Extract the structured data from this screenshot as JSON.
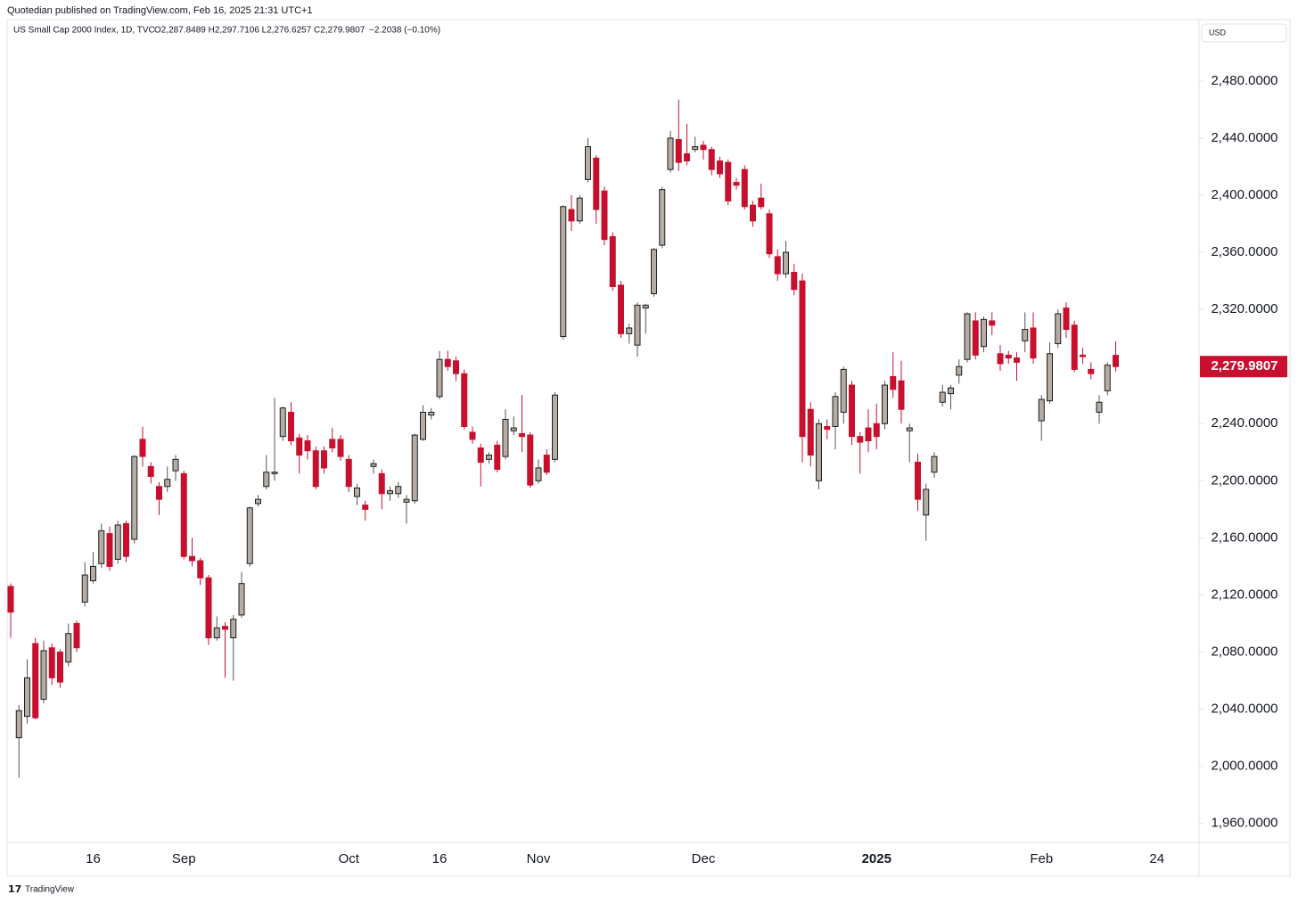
{
  "publisher": "Quotedian published on TradingView.com, Feb 16, 2025 21:31 UTC+1",
  "brand": "TradingView",
  "chart_data": {
    "type": "candlestick",
    "symbol": "US Small Cap 2000 Index, 1D, TVC",
    "ohlc_text": "O2,287.8489 H2,297.7106 L2,276.6257 C2,279.9807",
    "change": "−2.2038 (−0.10%)",
    "currency": "USD",
    "price_label": "2,279.9807",
    "up_color": "#b5aca3",
    "up_border": "#1e1e1e",
    "down_color": "#c8102e",
    "ylim": [
      1923,
      2523
    ],
    "yticks": [
      {
        "value": 1960,
        "label": "1,960.0000"
      },
      {
        "value": 2000,
        "label": "2,000.0000"
      },
      {
        "value": 2040,
        "label": "2,040.0000"
      },
      {
        "value": 2080,
        "label": "2,080.0000"
      },
      {
        "value": 2120,
        "label": "2,120.0000"
      },
      {
        "value": 2160,
        "label": "2,160.0000"
      },
      {
        "value": 2200,
        "label": "2,200.0000"
      },
      {
        "value": 2240,
        "label": "2,240.0000"
      },
      {
        "value": 2280,
        "label": "2,280.0000"
      },
      {
        "value": 2320,
        "label": "2,320.0000"
      },
      {
        "value": 2360,
        "label": "2,360.0000"
      },
      {
        "value": 2400,
        "label": "2,400.0000"
      },
      {
        "value": 2440,
        "label": "2,440.0000"
      },
      {
        "value": 2480,
        "label": "2,480.0000"
      }
    ],
    "categories": [
      null,
      null,
      null,
      null,
      null,
      null,
      null,
      null,
      null,
      null,
      "16",
      null,
      null,
      null,
      null,
      null,
      null,
      null,
      null,
      null,
      null,
      "Sep",
      null,
      null,
      null,
      null,
      null,
      null,
      null,
      null,
      null,
      null,
      null,
      null,
      null,
      null,
      null,
      null,
      null,
      null,
      null,
      "Oct",
      null,
      null,
      null,
      null,
      null,
      null,
      null,
      null,
      null,
      null,
      "16",
      null,
      null,
      null,
      null,
      null,
      null,
      null,
      null,
      null,
      null,
      null,
      "Nov",
      null,
      null,
      null,
      null,
      null,
      null,
      null,
      null,
      null,
      null,
      null,
      null,
      null,
      null,
      null,
      null,
      null,
      null,
      null,
      "Dec",
      null,
      null,
      null,
      null,
      null,
      null,
      null,
      null,
      null,
      null,
      null,
      null,
      null,
      null,
      null,
      null,
      null,
      null,
      null,
      null,
      "2025",
      null,
      null,
      null,
      null,
      null,
      null,
      null,
      null,
      null,
      null,
      null,
      null,
      null,
      null,
      null,
      null,
      null,
      null,
      null,
      "Feb",
      null,
      null,
      null,
      null,
      null,
      null,
      null,
      null,
      null,
      null,
      null,
      null,
      null,
      "24"
    ],
    "ohlc": [
      [
        2126,
        2128,
        2090,
        2108
      ],
      [
        2020,
        2043,
        1992,
        2039
      ],
      [
        2035,
        2075,
        2030,
        2062
      ],
      [
        2086,
        2090,
        2033,
        2034
      ],
      [
        2047,
        2088,
        2044,
        2081
      ],
      [
        2083,
        2086,
        2057,
        2062
      ],
      [
        2080,
        2082,
        2055,
        2059
      ],
      [
        2073,
        2100,
        2070,
        2093
      ],
      [
        2100,
        2102,
        2080,
        2083
      ],
      [
        2115,
        2143,
        2112,
        2134
      ],
      [
        2130,
        2150,
        2128,
        2140
      ],
      [
        2142,
        2170,
        2139,
        2165
      ],
      [
        2163,
        2168,
        2137,
        2140
      ],
      [
        2145,
        2172,
        2142,
        2169
      ],
      [
        2170,
        2172,
        2143,
        2147
      ],
      [
        2159,
        2218,
        2156,
        2217
      ],
      [
        2229,
        2238,
        2210,
        2217
      ],
      [
        2210,
        2213,
        2198,
        2203
      ],
      [
        2196,
        2199,
        2176,
        2187
      ],
      [
        2196,
        2210,
        2192,
        2201
      ],
      [
        2207,
        2218,
        2200,
        2215
      ],
      [
        2205,
        2207,
        2145,
        2147
      ],
      [
        2147,
        2160,
        2140,
        2144
      ],
      [
        2144,
        2146,
        2127,
        2132
      ],
      [
        2132,
        2134,
        2085,
        2090
      ],
      [
        2090,
        2105,
        2088,
        2097
      ],
      [
        2098,
        2101,
        2062,
        2096
      ],
      [
        2090,
        2106,
        2060,
        2103
      ],
      [
        2106,
        2136,
        2104,
        2128
      ],
      [
        2142,
        2182,
        2140,
        2181
      ],
      [
        2184,
        2190,
        2182,
        2187
      ],
      [
        2196,
        2218,
        2194,
        2206
      ],
      [
        2205,
        2258,
        2200,
        2206
      ],
      [
        2231,
        2252,
        2228,
        2251
      ],
      [
        2248,
        2255,
        2225,
        2228
      ],
      [
        2230,
        2233,
        2205,
        2218
      ],
      [
        2228,
        2232,
        2215,
        2221
      ],
      [
        2221,
        2224,
        2194,
        2196
      ],
      [
        2221,
        2224,
        2205,
        2209
      ],
      [
        2229,
        2237,
        2220,
        2223
      ],
      [
        2229,
        2232,
        2214,
        2217
      ],
      [
        2215,
        2218,
        2192,
        2196
      ],
      [
        2189,
        2198,
        2183,
        2195
      ],
      [
        2183,
        2186,
        2172,
        2180
      ],
      [
        2210,
        2215,
        2205,
        2212
      ],
      [
        2205,
        2208,
        2180,
        2191
      ],
      [
        2191,
        2196,
        2186,
        2193
      ],
      [
        2191,
        2199,
        2188,
        2196
      ],
      [
        2185,
        2190,
        2170,
        2187
      ],
      [
        2186,
        2233,
        2184,
        2232
      ],
      [
        2229,
        2253,
        2228,
        2248
      ],
      [
        2246,
        2251,
        2243,
        2248
      ],
      [
        2259,
        2291,
        2257,
        2285
      ],
      [
        2285,
        2291,
        2277,
        2280
      ],
      [
        2284,
        2287,
        2270,
        2275
      ],
      [
        2275,
        2278,
        2236,
        2238
      ],
      [
        2234,
        2238,
        2226,
        2229
      ],
      [
        2223,
        2226,
        2196,
        2213
      ],
      [
        2215,
        2220,
        2212,
        2218
      ],
      [
        2225,
        2228,
        2206,
        2208
      ],
      [
        2217,
        2250,
        2215,
        2243
      ],
      [
        2235,
        2245,
        2232,
        2237
      ],
      [
        2233,
        2260,
        2220,
        2231
      ],
      [
        2232,
        2234,
        2195,
        2197
      ],
      [
        2200,
        2215,
        2198,
        2209
      ],
      [
        2218,
        2222,
        2204,
        2206
      ],
      [
        2215,
        2262,
        2213,
        2260
      ],
      [
        2301,
        2393,
        2299,
        2392
      ],
      [
        2390,
        2400,
        2375,
        2382
      ],
      [
        2382,
        2400,
        2380,
        2398
      ],
      [
        2411,
        2440,
        2409,
        2434
      ],
      [
        2426,
        2428,
        2380,
        2390
      ],
      [
        2403,
        2406,
        2365,
        2369
      ],
      [
        2371,
        2374,
        2333,
        2336
      ],
      [
        2337,
        2340,
        2300,
        2303
      ],
      [
        2303,
        2310,
        2296,
        2307
      ],
      [
        2295,
        2325,
        2287,
        2323
      ],
      [
        2321,
        2324,
        2303,
        2323
      ],
      [
        2331,
        2363,
        2329,
        2362
      ],
      [
        2365,
        2406,
        2363,
        2404
      ],
      [
        2418,
        2445,
        2416,
        2440
      ],
      [
        2439,
        2467,
        2417,
        2423
      ],
      [
        2429,
        2450,
        2421,
        2424
      ],
      [
        2432,
        2441,
        2430,
        2434
      ],
      [
        2435,
        2438,
        2425,
        2432
      ],
      [
        2432,
        2434,
        2414,
        2418
      ],
      [
        2424,
        2427,
        2412,
        2415
      ],
      [
        2423,
        2425,
        2393,
        2396
      ],
      [
        2409,
        2412,
        2404,
        2407
      ],
      [
        2418,
        2421,
        2390,
        2392
      ],
      [
        2393,
        2396,
        2378,
        2382
      ],
      [
        2398,
        2408,
        2390,
        2392
      ],
      [
        2387,
        2390,
        2356,
        2359
      ],
      [
        2357,
        2362,
        2340,
        2345
      ],
      [
        2345,
        2368,
        2342,
        2360
      ],
      [
        2346,
        2352,
        2330,
        2334
      ],
      [
        2340,
        2345,
        2213,
        2231
      ],
      [
        2250,
        2255,
        2210,
        2218
      ],
      [
        2200,
        2243,
        2194,
        2240
      ],
      [
        2238,
        2243,
        2229,
        2236
      ],
      [
        2238,
        2262,
        2222,
        2259
      ],
      [
        2248,
        2280,
        2240,
        2278
      ],
      [
        2267,
        2270,
        2225,
        2231
      ],
      [
        2231,
        2234,
        2205,
        2227
      ],
      [
        2237,
        2250,
        2220,
        2228
      ],
      [
        2240,
        2254,
        2222,
        2231
      ],
      [
        2240,
        2270,
        2236,
        2267
      ],
      [
        2273,
        2290,
        2258,
        2264
      ],
      [
        2270,
        2284,
        2240,
        2250
      ],
      [
        2235,
        2240,
        2213,
        2237
      ],
      [
        2213,
        2219,
        2179,
        2187
      ],
      [
        2176,
        2198,
        2158,
        2194
      ],
      [
        2206,
        2220,
        2202,
        2217
      ],
      [
        2255,
        2267,
        2252,
        2262
      ],
      [
        2261,
        2267,
        2250,
        2265
      ],
      [
        2274,
        2285,
        2268,
        2280
      ],
      [
        2285,
        2318,
        2283,
        2317
      ],
      [
        2312,
        2318,
        2285,
        2288
      ],
      [
        2294,
        2315,
        2290,
        2313
      ],
      [
        2312,
        2318,
        2302,
        2309
      ],
      [
        2289,
        2295,
        2277,
        2282
      ],
      [
        2288,
        2291,
        2282,
        2286
      ],
      [
        2286,
        2290,
        2270,
        2283
      ],
      [
        2298,
        2318,
        2290,
        2306
      ],
      [
        2307,
        2318,
        2282,
        2286
      ],
      [
        2242,
        2260,
        2228,
        2257
      ],
      [
        2256,
        2297,
        2254,
        2289
      ],
      [
        2296,
        2320,
        2293,
        2317
      ],
      [
        2321,
        2325,
        2300,
        2306
      ],
      [
        2309,
        2312,
        2276,
        2278
      ],
      [
        2288,
        2293,
        2282,
        2287
      ],
      [
        2278,
        2283,
        2271,
        2275
      ],
      [
        2248,
        2260,
        2240,
        2255
      ],
      [
        2263,
        2283,
        2260,
        2281
      ],
      [
        2287.8489,
        2297.7106,
        2276.6257,
        2279.9807
      ],
      null,
      null,
      null,
      null,
      null
    ]
  }
}
